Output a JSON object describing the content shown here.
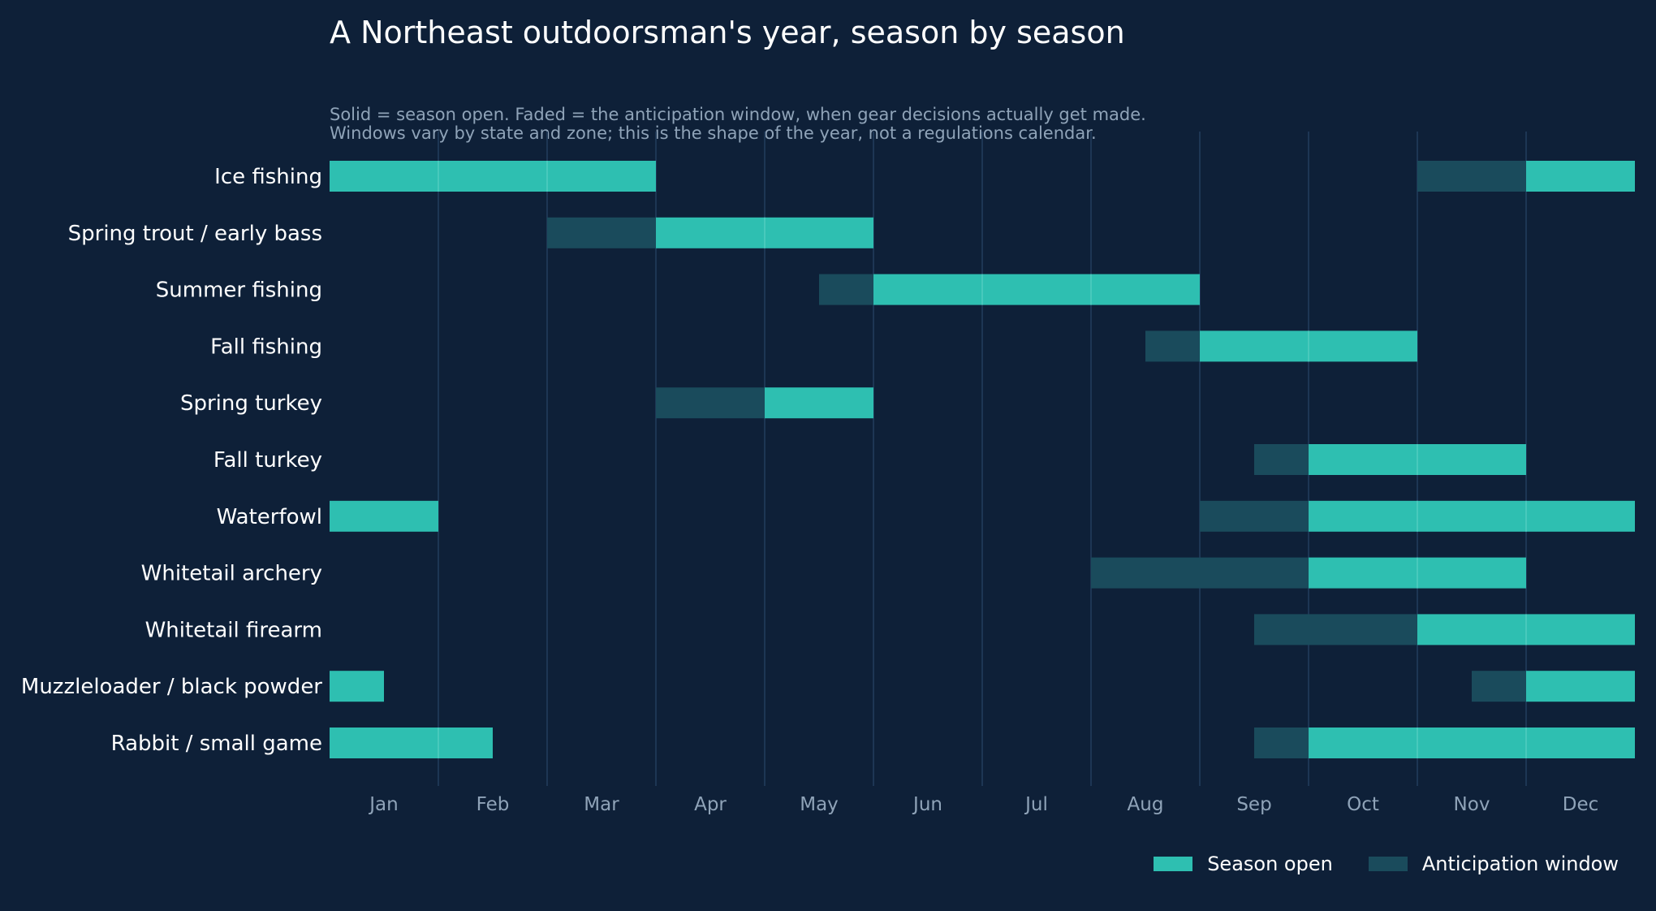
{
  "title": "A Northeast outdoorsman's year, season by season",
  "subtitle_lines": [
    "Solid = season open. Faded = the anticipation window, when gear decisions actually get made.",
    "Windows vary by state and zone; this is the shape of the year, not a regulations calendar."
  ],
  "colors": {
    "background": "#0e2038",
    "open": "#2ebfb1",
    "anticipation": "#1a4b5c",
    "gridline": "#1d3654",
    "divider": "#5ad0c4"
  },
  "legend": {
    "open_label": "Season open",
    "anticipation_label": "Anticipation window"
  },
  "chart_data": {
    "type": "gantt",
    "x_unit": "months (0 = start of Jan, 12 = end of Dec)",
    "xlim": [
      0,
      12
    ],
    "months": [
      "Jan",
      "Feb",
      "Mar",
      "Apr",
      "May",
      "Jun",
      "Jul",
      "Aug",
      "Sep",
      "Oct",
      "Nov",
      "Dec"
    ],
    "grid": true,
    "legend_position": "bottom-right",
    "rows": [
      {
        "name": "Ice fishing",
        "open": [
          [
            0,
            3
          ],
          [
            11,
            12
          ]
        ],
        "anticipation": [
          [
            10,
            11
          ]
        ]
      },
      {
        "name": "Spring trout / early bass",
        "open": [
          [
            3,
            5
          ]
        ],
        "anticipation": [
          [
            2,
            3
          ]
        ]
      },
      {
        "name": "Summer fishing",
        "open": [
          [
            5,
            8
          ]
        ],
        "anticipation": [
          [
            4.5,
            5
          ]
        ]
      },
      {
        "name": "Fall fishing",
        "open": [
          [
            8,
            10
          ]
        ],
        "anticipation": [
          [
            7.5,
            8
          ]
        ]
      },
      {
        "name": "Spring turkey",
        "open": [
          [
            4,
            5
          ]
        ],
        "anticipation": [
          [
            3,
            4
          ]
        ]
      },
      {
        "name": "Fall turkey",
        "open": [
          [
            9,
            11
          ]
        ],
        "anticipation": [
          [
            8.5,
            9
          ]
        ]
      },
      {
        "name": "Waterfowl",
        "open": [
          [
            0,
            1
          ],
          [
            9,
            12
          ]
        ],
        "anticipation": [
          [
            8,
            9
          ]
        ]
      },
      {
        "name": "Whitetail archery",
        "open": [
          [
            9,
            11
          ]
        ],
        "anticipation": [
          [
            7,
            9
          ]
        ]
      },
      {
        "name": "Whitetail firearm",
        "open": [
          [
            10,
            12
          ]
        ],
        "anticipation": [
          [
            8.5,
            10
          ]
        ]
      },
      {
        "name": "Muzzleloader / black powder",
        "open": [
          [
            0,
            0.5
          ],
          [
            11,
            12
          ]
        ],
        "anticipation": [
          [
            10.5,
            11
          ]
        ]
      },
      {
        "name": "Rabbit / small game",
        "open": [
          [
            0,
            1.5
          ],
          [
            9,
            12
          ]
        ],
        "anticipation": [
          [
            8.5,
            9
          ]
        ]
      }
    ]
  }
}
